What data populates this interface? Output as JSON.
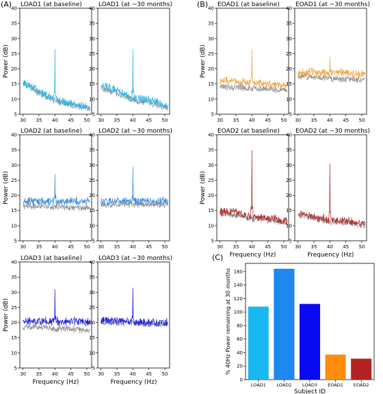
{
  "panel_labels": [
    "(A)",
    "(B)",
    "(C)"
  ],
  "axis_text": {
    "power_label": "Power (dB)",
    "freq_label": "Frequency (Hz)",
    "y_ticks": [
      "5",
      "10",
      "15",
      "20",
      "25",
      "30",
      "35",
      "40"
    ],
    "x_ticks": [
      "30",
      "35",
      "40",
      "45",
      "50"
    ]
  },
  "colors": {
    "control": "#8c8c8c",
    "LOAD1": "#29b6e8",
    "LOAD2": "#3f8fe0",
    "LOAD3": "#1a1adf",
    "EOAD1": "#f5a33a",
    "EOAD2": "#b22a2a"
  },
  "chart_data": [
    {
      "type": "line",
      "title": "LOAD1 (at baseline)",
      "xlabel": "",
      "ylabel": "Power (dB)",
      "xlim": [
        29,
        51.5
      ],
      "ylim": [
        5,
        40
      ],
      "color": "#29b6e8",
      "series": [
        {
          "x": [
            30,
            35,
            40,
            45,
            51
          ],
          "values": [
            15.5,
            12.5,
            26.5,
            8.5,
            7
          ]
        },
        {
          "x": [
            30,
            35,
            40,
            45,
            51
          ],
          "values": [
            16,
            12,
            10.5,
            8,
            6.5
          ]
        }
      ]
    },
    {
      "type": "line",
      "title": "LOAD1 (at ~30 months)",
      "xlabel": "",
      "ylabel": "",
      "xlim": [
        29,
        51.5
      ],
      "ylim": [
        5,
        40
      ],
      "color": "#29b6e8",
      "series": [
        {
          "x": [
            30,
            35,
            40,
            45,
            51
          ],
          "values": [
            14.5,
            13,
            26.5,
            10,
            7.5
          ]
        },
        {
          "x": [
            30,
            35,
            40,
            45,
            51
          ],
          "values": [
            13.5,
            12,
            11,
            9,
            7
          ]
        }
      ]
    },
    {
      "type": "line",
      "title": "EOAD1 (at baseline)",
      "xlabel": "",
      "ylabel": "Power (dB)",
      "xlim": [
        29,
        51.5
      ],
      "ylim": [
        5,
        40
      ],
      "color": "#f5a33a",
      "series": [
        {
          "x": [
            30,
            35,
            40,
            45,
            51
          ],
          "values": [
            16,
            16,
            26.5,
            15,
            14.5
          ]
        },
        {
          "x": [
            30,
            35,
            40,
            45,
            51
          ],
          "values": [
            14,
            14,
            13.5,
            13.5,
            13
          ]
        }
      ]
    },
    {
      "type": "line",
      "title": "EOAD1 (at ~30 months)",
      "xlabel": "",
      "ylabel": "",
      "xlim": [
        29,
        51.5
      ],
      "ylim": [
        5,
        40
      ],
      "color": "#f5a33a",
      "series": [
        {
          "x": [
            30,
            35,
            40,
            45,
            51
          ],
          "values": [
            18.5,
            19,
            24,
            19,
            18
          ]
        },
        {
          "x": [
            30,
            35,
            40,
            45,
            51
          ],
          "values": [
            17.5,
            17.5,
            17,
            16.5,
            16.5
          ]
        }
      ]
    },
    {
      "type": "line",
      "title": "LOAD2 (at baseline)",
      "xlabel": "",
      "ylabel": "Power (dB)",
      "xlim": [
        29,
        51.5
      ],
      "ylim": [
        5,
        40
      ],
      "color": "#3f8fe0",
      "series": [
        {
          "x": [
            30,
            35,
            40,
            45,
            51
          ],
          "values": [
            18,
            18,
            27,
            18,
            18
          ]
        },
        {
          "x": [
            30,
            35,
            40,
            45,
            51
          ],
          "values": [
            16.5,
            16.5,
            16,
            16,
            16
          ]
        }
      ]
    },
    {
      "type": "line",
      "title": "LOAD2 (at ~30 months)",
      "xlabel": "",
      "ylabel": "",
      "xlim": [
        29,
        51.5
      ],
      "ylim": [
        5,
        40
      ],
      "color": "#3f8fe0",
      "series": [
        {
          "x": [
            30,
            35,
            40,
            45,
            51
          ],
          "values": [
            18,
            18,
            29.5,
            18,
            18
          ]
        },
        {
          "x": [
            30,
            35,
            40,
            45,
            51
          ],
          "values": [
            17,
            17,
            17,
            17,
            17
          ]
        }
      ]
    },
    {
      "type": "line",
      "title": "EOAD2 (at baseline)",
      "xlabel": "Frequency (Hz)",
      "ylabel": "Power (dB)",
      "xlim": [
        29,
        51.5
      ],
      "ylim": [
        5,
        40
      ],
      "color": "#b22a2a",
      "series": [
        {
          "x": [
            30,
            35,
            40,
            45,
            51
          ],
          "values": [
            14.5,
            14.5,
            35,
            12.5,
            11.5
          ]
        },
        {
          "x": [
            30,
            35,
            40,
            45,
            51
          ],
          "values": [
            14,
            13.5,
            13,
            12,
            11
          ]
        }
      ]
    },
    {
      "type": "line",
      "title": "EOAD2 (at ~30 months)",
      "xlabel": "Frequency (Hz)",
      "ylabel": "",
      "xlim": [
        29,
        51.5
      ],
      "ylim": [
        5,
        40
      ],
      "color": "#b22a2a",
      "series": [
        {
          "x": [
            30,
            35,
            40,
            45,
            51
          ],
          "values": [
            14,
            13,
            30.5,
            11.5,
            10.5
          ]
        },
        {
          "x": [
            30,
            35,
            40,
            45,
            51
          ],
          "values": [
            13.5,
            12.5,
            12,
            11,
            10
          ]
        }
      ]
    },
    {
      "type": "line",
      "title": "LOAD3 (at baseline)",
      "xlabel": "Frequency (Hz)",
      "ylabel": "Power (dB)",
      "xlim": [
        29,
        51.5
      ],
      "ylim": [
        5,
        40
      ],
      "color": "#1a1adf",
      "series": [
        {
          "x": [
            30,
            35,
            40,
            45,
            51
          ],
          "values": [
            20.5,
            20.5,
            31,
            20.5,
            20
          ]
        },
        {
          "x": [
            30,
            35,
            40,
            45,
            51
          ],
          "values": [
            18.5,
            18.5,
            18,
            18,
            17.5
          ]
        }
      ]
    },
    {
      "type": "line",
      "title": "LOAD3 (at ~30 months)",
      "xlabel": "Frequency (Hz)",
      "ylabel": "",
      "xlim": [
        29,
        51.5
      ],
      "ylim": [
        5,
        40
      ],
      "color": "#1a1adf",
      "series": [
        {
          "x": [
            30,
            35,
            40,
            45,
            51
          ],
          "values": [
            20.5,
            20.5,
            31.5,
            20,
            20
          ]
        },
        {
          "x": [
            30,
            35,
            40,
            45,
            51
          ],
          "values": [
            20,
            20,
            20,
            19.5,
            19.5
          ]
        }
      ]
    },
    {
      "type": "bar",
      "title": "",
      "xlabel": "Subject ID",
      "ylabel": "% 40Hz Power remaining at 30 months",
      "categories": [
        "LOAD1",
        "LOAD2",
        "LOAD3",
        "EOAD1",
        "EOAD2"
      ],
      "values": [
        108,
        164,
        112,
        37,
        31
      ],
      "colors": [
        "#1ab8f0",
        "#1e88f0",
        "#0a0af0",
        "#ff8c0a",
        "#b22222"
      ],
      "ylim": [
        0,
        172
      ],
      "y_ticks": [
        "0",
        "20",
        "40",
        "60",
        "80",
        "100",
        "120",
        "140",
        "160"
      ]
    }
  ]
}
